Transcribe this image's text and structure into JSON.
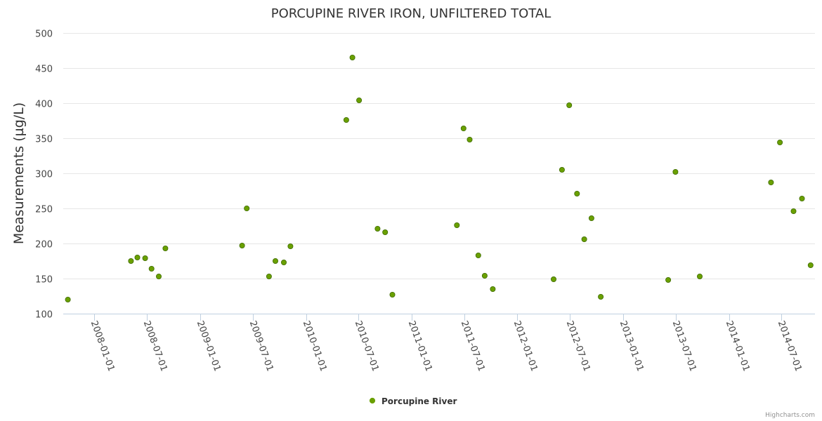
{
  "chart_data": {
    "type": "scatter",
    "title": "PORCUPINE RIVER IRON, UNFILTERED TOTAL",
    "xlabel": "",
    "ylabel": "Measurements (µg/L)",
    "ylim": [
      100,
      500
    ],
    "yticks": [
      100,
      150,
      200,
      250,
      300,
      350,
      400,
      450,
      500
    ],
    "xlim": [
      "2007-09-15",
      "2014-10-25"
    ],
    "xticks": [
      "2008-01-01",
      "2008-07-01",
      "2009-01-01",
      "2009-07-01",
      "2010-01-01",
      "2010-07-01",
      "2011-01-01",
      "2011-07-01",
      "2012-01-01",
      "2012-07-01",
      "2013-01-01",
      "2013-07-01",
      "2014-01-01",
      "2014-07-01"
    ],
    "grid": true,
    "legend_position": "bottom-center",
    "color": "#6aa000",
    "series": [
      {
        "name": "Porcupine River",
        "points": [
          {
            "x": "2007-10-01",
            "y": 120
          },
          {
            "x": "2008-05-06",
            "y": 175
          },
          {
            "x": "2008-05-28",
            "y": 180
          },
          {
            "x": "2008-06-24",
            "y": 179
          },
          {
            "x": "2008-07-16",
            "y": 164
          },
          {
            "x": "2008-08-10",
            "y": 153
          },
          {
            "x": "2008-09-02",
            "y": 193
          },
          {
            "x": "2009-05-25",
            "y": 197
          },
          {
            "x": "2009-06-10",
            "y": 250
          },
          {
            "x": "2009-08-26",
            "y": 153
          },
          {
            "x": "2009-09-17",
            "y": 175
          },
          {
            "x": "2009-10-16",
            "y": 173
          },
          {
            "x": "2009-11-08",
            "y": 196
          },
          {
            "x": "2010-05-20",
            "y": 376
          },
          {
            "x": "2010-06-10",
            "y": 465
          },
          {
            "x": "2010-07-03",
            "y": 404
          },
          {
            "x": "2010-09-05",
            "y": 221
          },
          {
            "x": "2010-10-01",
            "y": 216
          },
          {
            "x": "2010-10-26",
            "y": 127
          },
          {
            "x": "2011-06-06",
            "y": 226
          },
          {
            "x": "2011-06-29",
            "y": 364
          },
          {
            "x": "2011-07-20",
            "y": 348
          },
          {
            "x": "2011-08-19",
            "y": 183
          },
          {
            "x": "2011-09-10",
            "y": 154
          },
          {
            "x": "2011-10-08",
            "y": 135
          },
          {
            "x": "2012-05-05",
            "y": 149
          },
          {
            "x": "2012-06-03",
            "y": 305
          },
          {
            "x": "2012-06-28",
            "y": 397
          },
          {
            "x": "2012-07-25",
            "y": 271
          },
          {
            "x": "2012-08-19",
            "y": 206
          },
          {
            "x": "2012-09-13",
            "y": 236
          },
          {
            "x": "2012-10-15",
            "y": 124
          },
          {
            "x": "2013-06-05",
            "y": 148
          },
          {
            "x": "2013-06-30",
            "y": 302
          },
          {
            "x": "2013-09-22",
            "y": 153
          },
          {
            "x": "2014-05-26",
            "y": 287
          },
          {
            "x": "2014-06-26",
            "y": 344
          },
          {
            "x": "2014-08-12",
            "y": 246
          },
          {
            "x": "2014-09-10",
            "y": 264
          },
          {
            "x": "2014-10-10",
            "y": 169
          }
        ]
      }
    ]
  },
  "credits": "Highcharts.com"
}
